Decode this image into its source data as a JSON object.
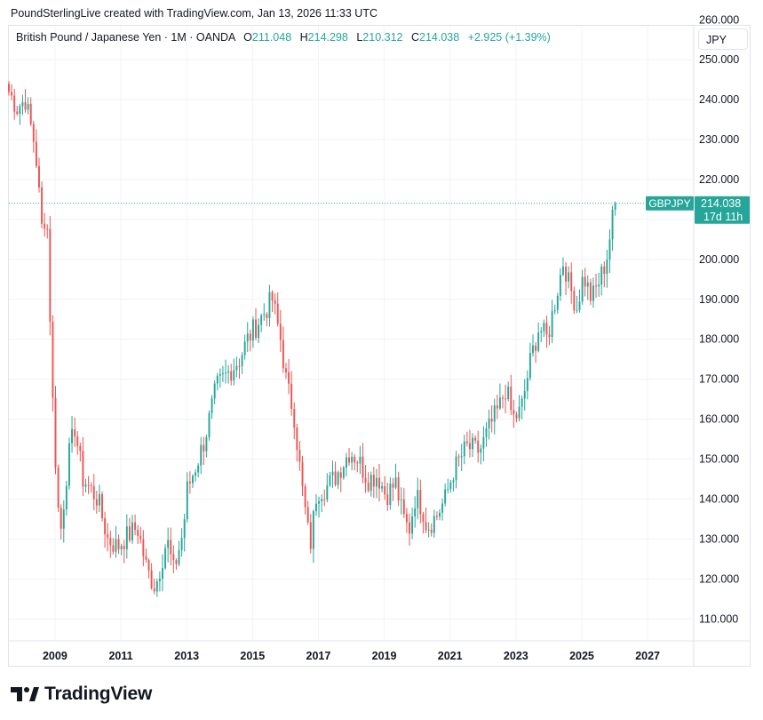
{
  "header": {
    "caption": "PoundSterlingLive created with TradingView.com, Jan 13, 2026 11:33 UTC"
  },
  "legend": {
    "symbol": "British Pound / Japanese Yen · 1M · OANDA",
    "o_label": "O",
    "o_value": "211.048",
    "h_label": "H",
    "h_value": "214.298",
    "l_label": "L",
    "l_value": "210.312",
    "c_label": "C",
    "c_value": "214.038",
    "change": "+2.925 (+1.39%)"
  },
  "currency": "JPY",
  "price_tag": {
    "symbol": "GBPJPY",
    "price": "214.038",
    "countdown": "17d 11h"
  },
  "footer": {
    "brand": "TradingView"
  },
  "colors": {
    "up": "#26a69a",
    "down": "#ef5350",
    "grid": "#f0f3fa",
    "axis_text": "#131722"
  },
  "chart_data": {
    "type": "candlestick",
    "title": "British Pound / Japanese Yen · 1M · OANDA",
    "ylim": [
      104.5,
      258.5
    ],
    "xlim": [
      2007.6,
      2028.4
    ],
    "y_ticks": [
      "110.000",
      "120.000",
      "130.000",
      "140.000",
      "150.000",
      "160.000",
      "170.000",
      "180.000",
      "190.000",
      "200.000",
      "210.000",
      "220.000",
      "230.000",
      "240.000",
      "250.000",
      "260.000"
    ],
    "x_ticks": [
      "2009",
      "2011",
      "2013",
      "2015",
      "2017",
      "2019",
      "2021",
      "2023",
      "2025",
      "2027"
    ],
    "last_close": 214.038,
    "anchors": [
      [
        2007.6,
        242
      ],
      [
        2007.85,
        238
      ],
      [
        2008.1,
        240
      ],
      [
        2008.4,
        228
      ],
      [
        2008.6,
        208
      ],
      [
        2008.75,
        212
      ],
      [
        2008.95,
        160
      ],
      [
        2009.15,
        130
      ],
      [
        2009.4,
        150
      ],
      [
        2009.6,
        158
      ],
      [
        2009.85,
        145
      ],
      [
        2010.3,
        140
      ],
      [
        2010.6,
        130
      ],
      [
        2010.9,
        128
      ],
      [
        2011.1,
        130
      ],
      [
        2011.5,
        133
      ],
      [
        2011.8,
        122
      ],
      [
        2012.05,
        118
      ],
      [
        2012.4,
        130
      ],
      [
        2012.6,
        122
      ],
      [
        2012.9,
        132
      ],
      [
        2013.0,
        142
      ],
      [
        2013.35,
        150
      ],
      [
        2013.55,
        155
      ],
      [
        2013.9,
        168
      ],
      [
        2014.3,
        172
      ],
      [
        2014.6,
        175
      ],
      [
        2014.85,
        180
      ],
      [
        2015.3,
        186
      ],
      [
        2015.45,
        188
      ],
      [
        2015.6,
        190
      ],
      [
        2015.85,
        180
      ],
      [
        2016.05,
        168
      ],
      [
        2016.25,
        162
      ],
      [
        2016.5,
        143
      ],
      [
        2016.75,
        128
      ],
      [
        2016.95,
        142
      ],
      [
        2017.25,
        143
      ],
      [
        2017.55,
        146
      ],
      [
        2017.95,
        152
      ],
      [
        2018.2,
        150
      ],
      [
        2018.5,
        145
      ],
      [
        2018.8,
        146
      ],
      [
        2019.05,
        141
      ],
      [
        2019.35,
        144
      ],
      [
        2019.55,
        136
      ],
      [
        2019.75,
        132
      ],
      [
        2019.95,
        141
      ],
      [
        2020.15,
        138
      ],
      [
        2020.3,
        133
      ],
      [
        2020.6,
        136
      ],
      [
        2020.85,
        140
      ],
      [
        2021.1,
        147
      ],
      [
        2021.5,
        153
      ],
      [
        2021.9,
        152
      ],
      [
        2022.2,
        158
      ],
      [
        2022.5,
        163
      ],
      [
        2022.7,
        168
      ],
      [
        2022.9,
        160
      ],
      [
        2023.15,
        162
      ],
      [
        2023.45,
        175
      ],
      [
        2023.7,
        183
      ],
      [
        2023.95,
        180
      ],
      [
        2024.15,
        188
      ],
      [
        2024.45,
        200
      ],
      [
        2024.6,
        194
      ],
      [
        2024.85,
        188
      ],
      [
        2025.05,
        196
      ],
      [
        2025.3,
        190
      ],
      [
        2025.55,
        195
      ],
      [
        2025.75,
        200
      ],
      [
        2025.95,
        211
      ],
      [
        2026.04,
        214.038
      ]
    ]
  }
}
